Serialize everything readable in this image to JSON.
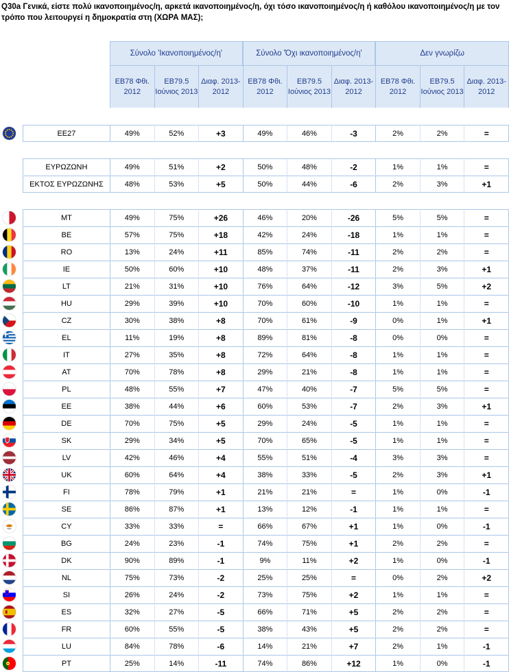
{
  "title": "Q30a Γενικά, είστε πολύ ικανοποιημένος/η, αρκετά ικανοποιημένος/η, όχι τόσο ικανοποιημένος/η ή καθόλου ικανοποιημένος/η με τον τρόπο που λειτουργεί η δημοκρατία στη (ΧΩΡΑ ΜΑΣ);",
  "groups": [
    "Σύνολο 'Ικανοποιημένος/η'",
    "Σύνολο 'Όχι ικανοποιημένος/η'",
    "Δεν γνωρίζω"
  ],
  "subheaders": [
    "EB78 Φθι. 2012",
    "EB79.5 Ιούνιος 2013",
    "Διαφ. 2013-2012"
  ],
  "sections": [
    {
      "rows": [
        {
          "code": "EE27",
          "flag": "eu",
          "vals": [
            "49%",
            "52%",
            "+3",
            "49%",
            "46%",
            "-3",
            "2%",
            "2%",
            "="
          ]
        }
      ]
    },
    {
      "rows": [
        {
          "code": "ΕΥΡΩΖΩΝΗ",
          "flag": "",
          "vals": [
            "49%",
            "51%",
            "+2",
            "50%",
            "48%",
            "-2",
            "1%",
            "1%",
            "="
          ]
        },
        {
          "code": "ΕΚΤΟΣ ΕΥΡΩΖΩΝΗΣ",
          "flag": "",
          "vals": [
            "48%",
            "53%",
            "+5",
            "50%",
            "44%",
            "-6",
            "2%",
            "3%",
            "+1"
          ]
        }
      ]
    },
    {
      "rows": [
        {
          "code": "MT",
          "flag": "MT",
          "vals": [
            "49%",
            "75%",
            "+26",
            "46%",
            "20%",
            "-26",
            "5%",
            "5%",
            "="
          ]
        },
        {
          "code": "BE",
          "flag": "BE",
          "vals": [
            "57%",
            "75%",
            "+18",
            "42%",
            "24%",
            "-18",
            "1%",
            "1%",
            "="
          ]
        },
        {
          "code": "RO",
          "flag": "RO",
          "vals": [
            "13%",
            "24%",
            "+11",
            "85%",
            "74%",
            "-11",
            "2%",
            "2%",
            "="
          ]
        },
        {
          "code": "IE",
          "flag": "IE",
          "vals": [
            "50%",
            "60%",
            "+10",
            "48%",
            "37%",
            "-11",
            "2%",
            "3%",
            "+1"
          ]
        },
        {
          "code": "LT",
          "flag": "LT",
          "vals": [
            "21%",
            "31%",
            "+10",
            "76%",
            "64%",
            "-12",
            "3%",
            "5%",
            "+2"
          ]
        },
        {
          "code": "HU",
          "flag": "HU",
          "vals": [
            "29%",
            "39%",
            "+10",
            "70%",
            "60%",
            "-10",
            "1%",
            "1%",
            "="
          ]
        },
        {
          "code": "CZ",
          "flag": "CZ",
          "vals": [
            "30%",
            "38%",
            "+8",
            "70%",
            "61%",
            "-9",
            "0%",
            "1%",
            "+1"
          ]
        },
        {
          "code": "EL",
          "flag": "EL",
          "vals": [
            "11%",
            "19%",
            "+8",
            "89%",
            "81%",
            "-8",
            "0%",
            "0%",
            "="
          ]
        },
        {
          "code": "IT",
          "flag": "IT",
          "vals": [
            "27%",
            "35%",
            "+8",
            "72%",
            "64%",
            "-8",
            "1%",
            "1%",
            "="
          ]
        },
        {
          "code": "AT",
          "flag": "AT",
          "vals": [
            "70%",
            "78%",
            "+8",
            "29%",
            "21%",
            "-8",
            "1%",
            "1%",
            "="
          ]
        },
        {
          "code": "PL",
          "flag": "PL",
          "vals": [
            "48%",
            "55%",
            "+7",
            "47%",
            "40%",
            "-7",
            "5%",
            "5%",
            "="
          ]
        },
        {
          "code": "EE",
          "flag": "EE",
          "vals": [
            "38%",
            "44%",
            "+6",
            "60%",
            "53%",
            "-7",
            "2%",
            "3%",
            "+1"
          ]
        },
        {
          "code": "DE",
          "flag": "DE",
          "vals": [
            "70%",
            "75%",
            "+5",
            "29%",
            "24%",
            "-5",
            "1%",
            "1%",
            "="
          ]
        },
        {
          "code": "SK",
          "flag": "SK",
          "vals": [
            "29%",
            "34%",
            "+5",
            "70%",
            "65%",
            "-5",
            "1%",
            "1%",
            "="
          ]
        },
        {
          "code": "LV",
          "flag": "LV",
          "vals": [
            "42%",
            "46%",
            "+4",
            "55%",
            "51%",
            "-4",
            "3%",
            "3%",
            "="
          ]
        },
        {
          "code": "UK",
          "flag": "UK",
          "vals": [
            "60%",
            "64%",
            "+4",
            "38%",
            "33%",
            "-5",
            "2%",
            "3%",
            "+1"
          ]
        },
        {
          "code": "FI",
          "flag": "FI",
          "vals": [
            "78%",
            "79%",
            "+1",
            "21%",
            "21%",
            "=",
            "1%",
            "0%",
            "-1"
          ]
        },
        {
          "code": "SE",
          "flag": "SE",
          "vals": [
            "86%",
            "87%",
            "+1",
            "13%",
            "12%",
            "-1",
            "1%",
            "1%",
            "="
          ]
        },
        {
          "code": "CY",
          "flag": "CY",
          "vals": [
            "33%",
            "33%",
            "=",
            "66%",
            "67%",
            "+1",
            "1%",
            "0%",
            "-1"
          ]
        },
        {
          "code": "BG",
          "flag": "BG",
          "vals": [
            "24%",
            "23%",
            "-1",
            "74%",
            "75%",
            "+1",
            "2%",
            "2%",
            "="
          ]
        },
        {
          "code": "DK",
          "flag": "DK",
          "vals": [
            "90%",
            "89%",
            "-1",
            "9%",
            "11%",
            "+2",
            "1%",
            "0%",
            "-1"
          ]
        },
        {
          "code": "NL",
          "flag": "NL",
          "vals": [
            "75%",
            "73%",
            "-2",
            "25%",
            "25%",
            "=",
            "0%",
            "2%",
            "+2"
          ]
        },
        {
          "code": "SI",
          "flag": "SI",
          "vals": [
            "26%",
            "24%",
            "-2",
            "73%",
            "75%",
            "+2",
            "1%",
            "1%",
            "="
          ]
        },
        {
          "code": "ES",
          "flag": "ES",
          "vals": [
            "32%",
            "27%",
            "-5",
            "66%",
            "71%",
            "+5",
            "2%",
            "2%",
            "="
          ]
        },
        {
          "code": "FR",
          "flag": "FR",
          "vals": [
            "60%",
            "55%",
            "-5",
            "38%",
            "43%",
            "+5",
            "2%",
            "2%",
            "="
          ]
        },
        {
          "code": "LU",
          "flag": "LU",
          "vals": [
            "84%",
            "78%",
            "-6",
            "14%",
            "21%",
            "+7",
            "2%",
            "1%",
            "-1"
          ]
        },
        {
          "code": "PT",
          "flag": "PT",
          "vals": [
            "25%",
            "14%",
            "-11",
            "74%",
            "86%",
            "+12",
            "1%",
            "0%",
            "-1"
          ]
        }
      ]
    }
  ]
}
